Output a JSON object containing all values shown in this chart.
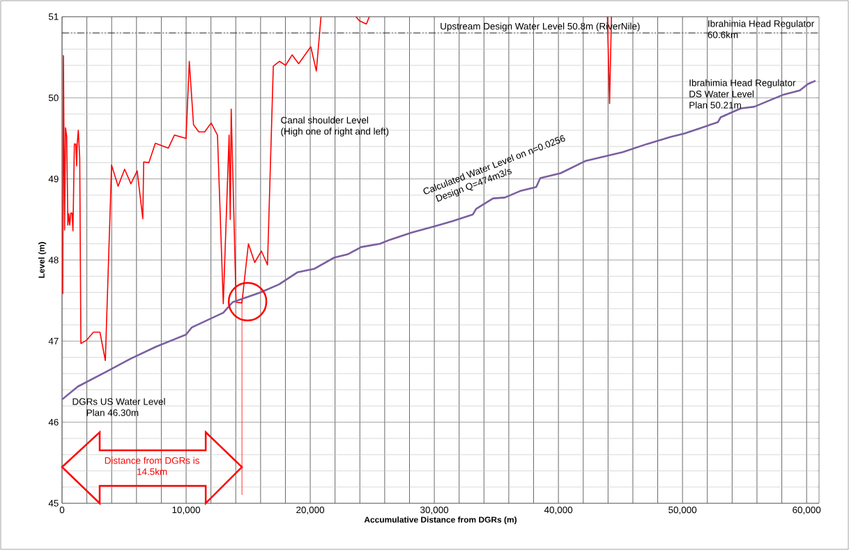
{
  "chart_data": {
    "type": "line",
    "xlabel": "Accumulative Distance from DGRs (m)",
    "ylabel": "Level (m)",
    "xlim": [
      0,
      61000
    ],
    "ylim": [
      45,
      51
    ],
    "xticks": [
      0,
      {
        "value": 10000,
        "label": "10,000"
      },
      {
        "value": 20000,
        "label": "20,000"
      },
      {
        "value": 30000,
        "label": "30,000"
      },
      {
        "value": 40000,
        "label": "40,000"
      },
      {
        "value": 50000,
        "label": "50,000"
      },
      {
        "value": 60000,
        "label": "60,000"
      }
    ],
    "yticks": [
      45,
      46,
      47,
      48,
      49,
      50,
      51
    ],
    "grid": true,
    "marker": "none",
    "series": [
      {
        "color": "#ff0000",
        "x": [
          56,
          112,
          206,
          281,
          375,
          469,
          544,
          619,
          712,
          806,
          881,
          994,
          1106,
          1181,
          1219,
          1312,
          1425,
          1519,
          1969,
          2531,
          3056,
          3490,
          3994,
          4519,
          5044,
          5550,
          6056,
          6506,
          6581,
          6994,
          7519,
          8569,
          9056,
          9994,
          10256,
          10594,
          11025,
          11494,
          12019,
          12525,
          12994,
          13463,
          13556,
          13631,
          14025,
          14494,
          15019,
          15525,
          16069,
          16556,
          17025,
          17531,
          18019,
          18544,
          19069,
          20044,
          20494,
          20869,
          21500,
          23680,
          23960,
          24522,
          24763,
          30000,
          43950,
          44122,
          44275
        ],
        "values": [
          47.58,
          50.52,
          48.37,
          49.63,
          49.52,
          48.43,
          48.57,
          48.43,
          48.58,
          48.58,
          48.36,
          49.43,
          49.43,
          49.16,
          49.43,
          49.6,
          49.26,
          46.97,
          47.01,
          47.11,
          47.11,
          46.76,
          49.17,
          48.91,
          49.12,
          48.94,
          49.1,
          48.51,
          49.21,
          49.2,
          49.44,
          49.38,
          49.54,
          49.5,
          50.45,
          49.67,
          49.58,
          49.58,
          49.69,
          49.54,
          47.46,
          49.54,
          48.5,
          49.86,
          47.48,
          47.47,
          48.2,
          47.97,
          48.11,
          47.94,
          50.39,
          50.45,
          50.4,
          50.53,
          50.42,
          50.63,
          50.33,
          51.0,
          null,
          51.0,
          50.95,
          50.91,
          51.0,
          null,
          51.0,
          49.93,
          51.0
        ]
      },
      {
        "color": "#7a5fa0",
        "x": [
          0,
          1275,
          3525,
          5494,
          7556,
          9994,
          10463,
          12994,
          13744,
          15994,
          17494,
          18994,
          20300,
          21935,
          23026,
          24110,
          25613,
          26430,
          28195,
          30103,
          31463,
          33096,
          33370,
          34730,
          35682,
          36907,
          38211,
          38538,
          40170,
          42154,
          45180,
          47126,
          49072,
          50157,
          52857,
          53076,
          54696,
          55782,
          58155,
          59449,
          60107,
          60714
        ],
        "values": [
          46.28,
          46.44,
          46.62,
          46.78,
          46.93,
          47.08,
          47.17,
          47.35,
          47.48,
          47.6,
          47.7,
          47.85,
          47.89,
          48.03,
          48.07,
          48.16,
          48.2,
          48.25,
          48.34,
          48.42,
          48.48,
          48.56,
          48.63,
          48.76,
          48.77,
          48.85,
          48.9,
          49.01,
          49.07,
          49.22,
          49.33,
          49.43,
          49.52,
          49.56,
          49.7,
          49.76,
          49.87,
          49.89,
          50.04,
          50.09,
          50.17,
          50.21
        ]
      }
    ],
    "ref_lines": [
      {
        "axis": "y",
        "value": 50.8,
        "label": "Upstream Design Water Level 50.8m (RiverNile)",
        "color": "#000000",
        "line_style": "dashed"
      },
      {
        "axis": "x",
        "value": 14500,
        "color": "#ff0000"
      }
    ],
    "annotations": [
      "Canal shoulder Level",
      "(High one of right and left)",
      "Calculated Water Level on n=0.0256",
      "Design Q=474m3/s",
      "Ibrahimia Head Regulator",
      "60.6km",
      "Ibrahimia Head Regulator",
      "DS Water Level",
      "Plan 50.21m",
      "DGRs US Water Level",
      "Plan 46.30m",
      "Distance from DGRs is",
      "14.5km"
    ]
  }
}
